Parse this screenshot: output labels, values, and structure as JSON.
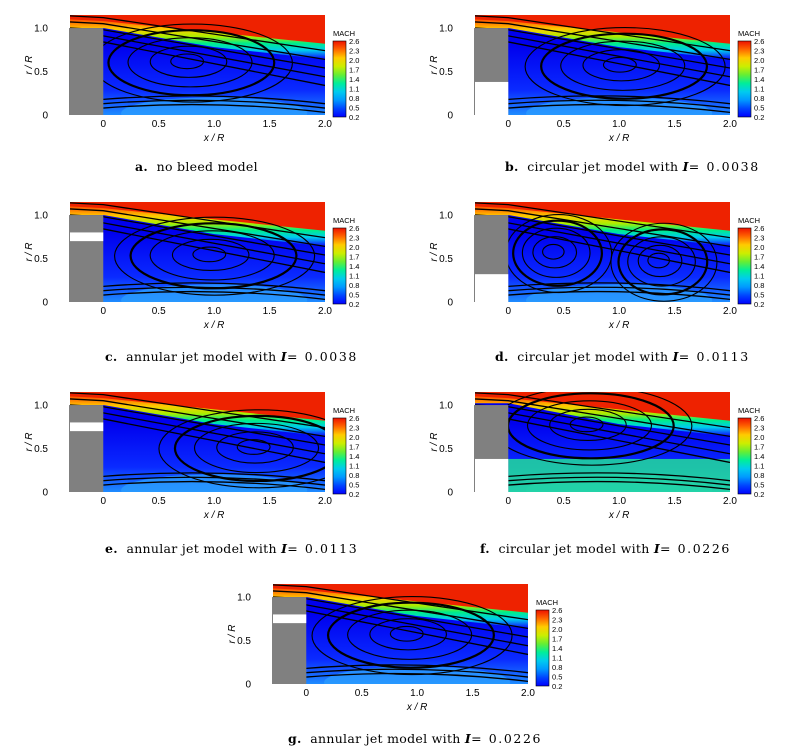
{
  "chart_data": [
    {
      "id": "a",
      "type": "heatmap",
      "bleed": "none",
      "I": null,
      "caption": {
        "label": "a.",
        "text": "no bleed model",
        "prefix": "",
        "ivalue": ""
      },
      "xlabel": "x / R",
      "ylabel": "r / R",
      "xlim": [
        -0.3,
        2.0
      ],
      "ylim": [
        0,
        1.15
      ],
      "xticks": [
        "0",
        "0.5",
        "1.0",
        "1.5",
        "2.0"
      ],
      "yticks": [
        "0",
        "0.5",
        "1.0"
      ],
      "colorbar": {
        "title": "MACH",
        "levels": [
          "2.6",
          "2.3",
          "2.0",
          "1.7",
          "1.4",
          "1.1",
          "0.8",
          "0.5",
          "0.2"
        ]
      },
      "vortex_centers": [
        [
          0.75,
          0.62
        ]
      ]
    },
    {
      "id": "b",
      "type": "heatmap",
      "bleed": "circular",
      "I": 0.0038,
      "caption": {
        "label": "b.",
        "text": "circular jet model with ",
        "prefix": "I",
        "ivalue": "= 0.0038"
      },
      "xlabel": "x / R",
      "ylabel": "r / R",
      "xlim": [
        -0.3,
        2.0
      ],
      "ylim": [
        0,
        1.15
      ],
      "xticks": [
        "0",
        "0.5",
        "1.0",
        "1.5",
        "2.0"
      ],
      "yticks": [
        "0",
        "0.5",
        "1.0"
      ],
      "colorbar": {
        "title": "MACH",
        "levels": [
          "2.6",
          "2.3",
          "2.0",
          "1.7",
          "1.4",
          "1.1",
          "0.8",
          "0.5",
          "0.2"
        ]
      },
      "vortex_centers": [
        [
          1.0,
          0.58
        ]
      ]
    },
    {
      "id": "c",
      "type": "heatmap",
      "bleed": "annular",
      "I": 0.0038,
      "caption": {
        "label": "c.",
        "text": "annular jet model with ",
        "prefix": "I",
        "ivalue": "= 0.0038"
      },
      "xlabel": "x / R",
      "ylabel": "r / R",
      "xlim": [
        -0.3,
        2.0
      ],
      "ylim": [
        0,
        1.15
      ],
      "xticks": [
        "0",
        "0.5",
        "1.0",
        "1.5",
        "2.0"
      ],
      "yticks": [
        "0",
        "0.5",
        "1.0"
      ],
      "colorbar": {
        "title": "MACH",
        "levels": [
          "2.6",
          "2.3",
          "2.0",
          "1.7",
          "1.4",
          "1.1",
          "0.8",
          "0.5",
          "0.2"
        ]
      },
      "vortex_centers": [
        [
          0.95,
          0.55
        ]
      ]
    },
    {
      "id": "d",
      "type": "heatmap",
      "bleed": "circular",
      "I": 0.0113,
      "caption": {
        "label": "d.",
        "text": "circular jet model with ",
        "prefix": "I",
        "ivalue": "= 0.0113"
      },
      "xlabel": "x / R",
      "ylabel": "r / R",
      "xlim": [
        -0.3,
        2.0
      ],
      "ylim": [
        0,
        1.15
      ],
      "xticks": [
        "0",
        "0.5",
        "1.0",
        "1.5",
        "2.0"
      ],
      "yticks": [
        "0",
        "0.5",
        "1.0"
      ],
      "colorbar": {
        "title": "MACH",
        "levels": [
          "2.6",
          "2.3",
          "2.0",
          "1.7",
          "1.4",
          "1.1",
          "0.8",
          "0.5",
          "0.2"
        ]
      },
      "vortex_centers": [
        [
          0.4,
          0.58
        ],
        [
          1.35,
          0.48
        ]
      ]
    },
    {
      "id": "e",
      "type": "heatmap",
      "bleed": "annular",
      "I": 0.0113,
      "caption": {
        "label": "e.",
        "text": "annular jet model with ",
        "prefix": "I",
        "ivalue": "= 0.0113"
      },
      "xlabel": "x / R",
      "ylabel": "r / R",
      "xlim": [
        -0.3,
        2.0
      ],
      "ylim": [
        0,
        1.15
      ],
      "xticks": [
        "0",
        "0.5",
        "1.0",
        "1.5",
        "2.0"
      ],
      "yticks": [
        "0",
        "0.5",
        "1.0"
      ],
      "colorbar": {
        "title": "MACH",
        "levels": [
          "2.6",
          "2.3",
          "2.0",
          "1.7",
          "1.4",
          "1.1",
          "0.8",
          "0.5",
          "0.2"
        ]
      },
      "vortex_centers": [
        [
          1.35,
          0.52
        ]
      ]
    },
    {
      "id": "f",
      "type": "heatmap",
      "bleed": "circular",
      "I": 0.0226,
      "caption": {
        "label": "f.",
        "text": "circular jet model with ",
        "prefix": "I",
        "ivalue": "= 0.0226"
      },
      "xlabel": "x / R",
      "ylabel": "r / R",
      "xlim": [
        -0.3,
        2.0
      ],
      "ylim": [
        0,
        1.15
      ],
      "xticks": [
        "0",
        "0.5",
        "1.0",
        "1.5",
        "2.0"
      ],
      "yticks": [
        "0",
        "0.5",
        "1.0"
      ],
      "colorbar": {
        "title": "MACH",
        "levels": [
          "2.6",
          "2.3",
          "2.0",
          "1.7",
          "1.4",
          "1.1",
          "0.8",
          "0.5",
          "0.2"
        ]
      },
      "vortex_centers": [
        [
          0.7,
          0.78
        ]
      ]
    },
    {
      "id": "g",
      "type": "heatmap",
      "bleed": "annular",
      "I": 0.0226,
      "caption": {
        "label": "g.",
        "text": "annular jet model with ",
        "prefix": "I",
        "ivalue": "= 0.0226"
      },
      "xlabel": "x / R",
      "ylabel": "r / R",
      "xlim": [
        -0.3,
        2.0
      ],
      "ylim": [
        0,
        1.15
      ],
      "xticks": [
        "0",
        "0.5",
        "1.0",
        "1.5",
        "2.0"
      ],
      "yticks": [
        "0",
        "0.5",
        "1.0"
      ],
      "colorbar": {
        "title": "MACH",
        "levels": [
          "2.6",
          "2.3",
          "2.0",
          "1.7",
          "1.4",
          "1.1",
          "0.8",
          "0.5",
          "0.2"
        ]
      },
      "vortex_centers": [
        [
          0.9,
          0.58
        ]
      ]
    }
  ],
  "colors": {
    "mach_scale": [
      "#0000ff",
      "#0044ff",
      "#0099ff",
      "#00ccee",
      "#00ee99",
      "#66ee33",
      "#ccee00",
      "#ffcc00",
      "#ff6600",
      "#ee1100"
    ],
    "body": "#808080",
    "streamline": "#000000"
  }
}
